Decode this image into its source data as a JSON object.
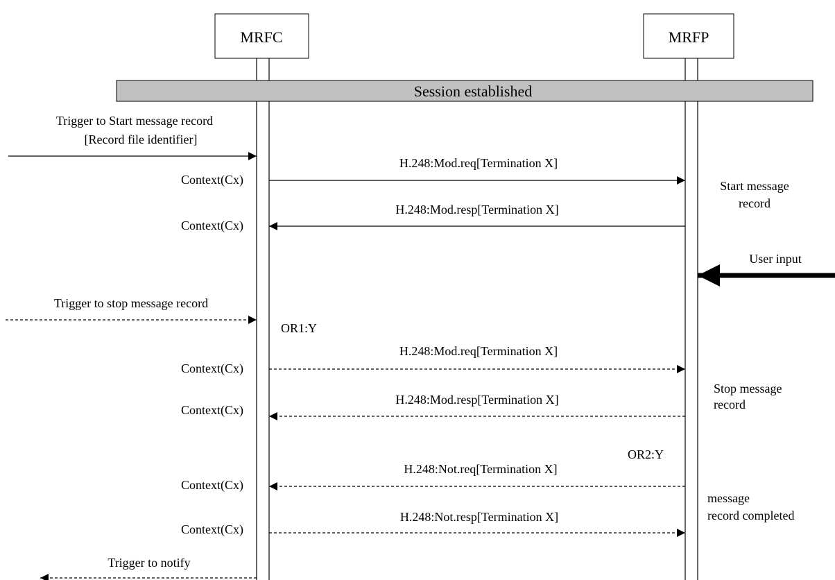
{
  "participants": {
    "mrfc": "MRFC",
    "mrfp": "MRFP"
  },
  "banner": "Session established",
  "triggers": {
    "start_line1": "Trigger to Start message record",
    "start_line2": "[Record file identifier]",
    "stop": "Trigger to stop message record",
    "notify": "Trigger to notify",
    "user_input": "User input"
  },
  "messages": {
    "m1": "H.248:Mod.req[Termination X]",
    "m2": "H.248:Mod.resp[Termination X]",
    "m3": "H.248:Mod.req[Termination X]",
    "m4": "H.248:Mod.resp[Termination X]",
    "m5": "H.248:Not.req[Termination X]",
    "m6": "H.248:Not.resp[Termination X]"
  },
  "contexts": {
    "c1": "Context(Cx)",
    "c2": "Context(Cx)",
    "c3": "Context(Cx)",
    "c4": "Context(Cx)",
    "c5": "Context(Cx)",
    "c6": "Context(Cx)"
  },
  "options": {
    "or1": "OR1:Y",
    "or2": "OR2:Y"
  },
  "notes": {
    "start_line1": "Start message",
    "start_line2": "record",
    "stop_line1": "Stop message",
    "stop_line2": "record",
    "completed_line1": "message",
    "completed_line2": "record completed"
  }
}
